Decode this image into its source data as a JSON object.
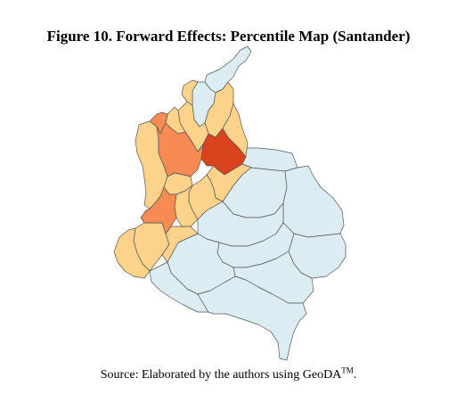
{
  "figure": {
    "title": "Figure 10. Forward Effects: Percentile Map (Santander)"
  },
  "caption": {
    "text": "Source: Elaborated by the authors using GeoDA",
    "trademark": "TM",
    "end": "."
  },
  "map": {
    "colors": {
      "light-blue": "#dcecf3",
      "light-orange": "#fdd28a",
      "medium-orange": "#f88b53",
      "red-orange": "#d8421d",
      "outline": "#555555"
    },
    "regions": [
      {
        "id": "guajira",
        "fill": "light-blue"
      },
      {
        "id": "atlantico",
        "fill": "light-orange"
      },
      {
        "id": "magdalena",
        "fill": "light-blue"
      },
      {
        "id": "cesar",
        "fill": "light-orange"
      },
      {
        "id": "bolivar",
        "fill": "light-orange"
      },
      {
        "id": "sucre",
        "fill": "light-orange"
      },
      {
        "id": "cordoba",
        "fill": "medium-orange"
      },
      {
        "id": "antioquia",
        "fill": "medium-orange"
      },
      {
        "id": "santander",
        "fill": "red-orange"
      },
      {
        "id": "norte-santander",
        "fill": "light-orange"
      },
      {
        "id": "choco",
        "fill": "light-orange"
      },
      {
        "id": "caldas-risaralda",
        "fill": "light-orange"
      },
      {
        "id": "boyaca",
        "fill": "light-orange"
      },
      {
        "id": "cundinamarca",
        "fill": "light-orange"
      },
      {
        "id": "valle",
        "fill": "medium-orange"
      },
      {
        "id": "tolima",
        "fill": "light-orange"
      },
      {
        "id": "cauca",
        "fill": "light-orange"
      },
      {
        "id": "huila",
        "fill": "light-orange"
      },
      {
        "id": "narino",
        "fill": "light-orange"
      },
      {
        "id": "arauca",
        "fill": "light-blue"
      },
      {
        "id": "casanare",
        "fill": "light-blue"
      },
      {
        "id": "vichada",
        "fill": "light-blue"
      },
      {
        "id": "meta",
        "fill": "light-blue"
      },
      {
        "id": "guainia",
        "fill": "light-blue"
      },
      {
        "id": "guaviare",
        "fill": "light-blue"
      },
      {
        "id": "vaupes",
        "fill": "light-blue"
      },
      {
        "id": "caqueta",
        "fill": "light-blue"
      },
      {
        "id": "putumayo",
        "fill": "light-blue"
      },
      {
        "id": "amazonas",
        "fill": "light-blue"
      }
    ]
  }
}
